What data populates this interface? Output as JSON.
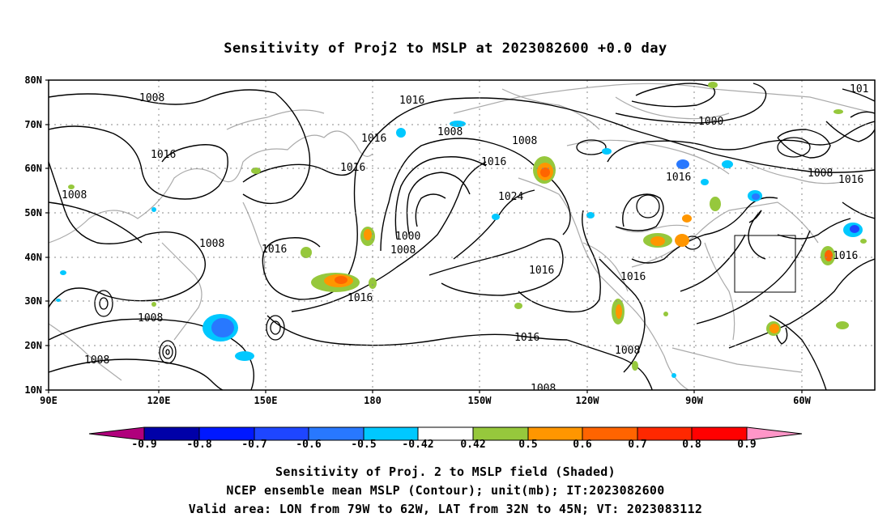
{
  "title": "Sensitivity of Proj2 to MSLP at 2023082600 +0.0 day",
  "lat_axis": [
    "80N",
    "70N",
    "60N",
    "50N",
    "40N",
    "30N",
    "20N",
    "10N"
  ],
  "lon_axis": [
    "90E",
    "120E",
    "150E",
    "180",
    "150W",
    "120W",
    "90W",
    "60W"
  ],
  "contour_labels": [
    {
      "text": "1008"
    },
    {
      "text": "1016"
    },
    {
      "text": "1016"
    },
    {
      "text": "1016"
    },
    {
      "text": "1008"
    },
    {
      "text": "1016"
    },
    {
      "text": "1008"
    },
    {
      "text": "1016"
    },
    {
      "text": "1024"
    },
    {
      "text": "1000"
    },
    {
      "text": "1008"
    },
    {
      "text": "1016"
    },
    {
      "text": "1008"
    },
    {
      "text": "1008"
    },
    {
      "text": "1016"
    },
    {
      "text": "1016"
    },
    {
      "text": "1008"
    },
    {
      "text": "1016"
    },
    {
      "text": "1016"
    },
    {
      "text": "1000"
    },
    {
      "text": "1008"
    },
    {
      "text": "1016"
    },
    {
      "text": "1008"
    },
    {
      "text": "1008"
    },
    {
      "text": "1016"
    },
    {
      "text": "101"
    }
  ],
  "colorbar": {
    "labels": [
      "-0.9",
      "-0.8",
      "-0.7",
      "-0.6",
      "-0.5",
      "-0.42",
      "0.42",
      "0.5",
      "0.6",
      "0.7",
      "0.8",
      "0.9"
    ],
    "colors": [
      "#b0007c",
      "#0000a8",
      "#0018ff",
      "#1e46ff",
      "#2878ff",
      "#00c8ff",
      "#ffffff",
      "#96c83c",
      "#ff9600",
      "#ff6400",
      "#ff2800",
      "#ff0000",
      "#ff96c8"
    ]
  },
  "captions": [
    "Sensitivity of Proj. 2 to MSLP field (Shaded)",
    "NCEP ensemble mean MSLP (Contour); unit(mb); IT:2023082600",
    "Valid area: LON from 79W to 62W, LAT from 32N to 45N; VT: 2023083112"
  ],
  "valid_area": {
    "lon": [
      "79W",
      "62W"
    ],
    "lat": [
      "32N",
      "45N"
    ]
  }
}
